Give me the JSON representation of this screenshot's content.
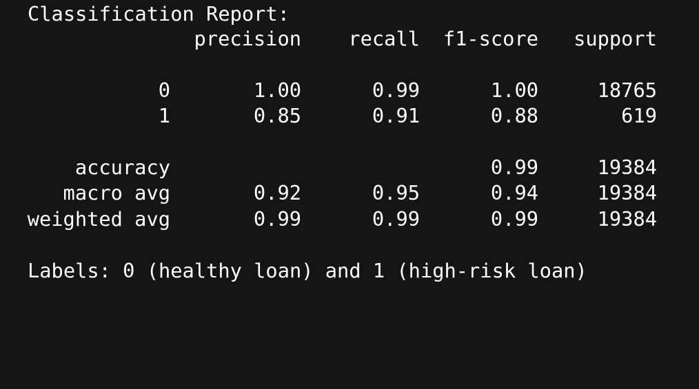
{
  "report": {
    "title": "Classification Report:",
    "headers": {
      "precision": "precision",
      "recall": "recall",
      "f1": "f1-score",
      "support": "support"
    },
    "rows": [
      {
        "label": "0",
        "precision": "1.00",
        "recall": "0.99",
        "f1": "1.00",
        "support": "18765"
      },
      {
        "label": "1",
        "precision": "0.85",
        "recall": "0.91",
        "f1": "0.88",
        "support": "619"
      }
    ],
    "summary": [
      {
        "label": "accuracy",
        "precision": "",
        "recall": "",
        "f1": "0.99",
        "support": "19384"
      },
      {
        "label": "macro avg",
        "precision": "0.92",
        "recall": "0.95",
        "f1": "0.94",
        "support": "19384"
      },
      {
        "label": "weighted avg",
        "precision": "0.99",
        "recall": "0.99",
        "f1": "0.99",
        "support": "19384"
      }
    ],
    "labels_note": "Labels: 0 (healthy loan) and 1 (high-risk loan)"
  }
}
